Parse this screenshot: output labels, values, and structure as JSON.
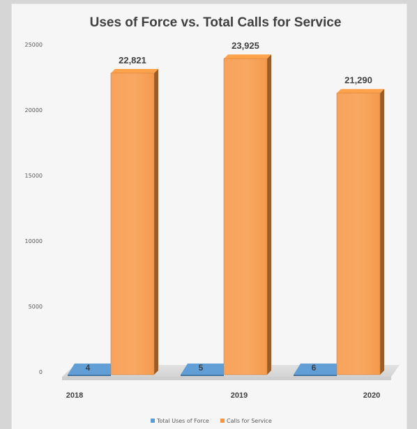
{
  "chart_data": {
    "type": "bar",
    "title": "Uses of Force vs. Total Calls for Service",
    "xlabel": "",
    "ylabel": "",
    "ylim": [
      0,
      25000
    ],
    "yticks": [
      0,
      5000,
      10000,
      15000,
      20000,
      25000
    ],
    "categories": [
      "2018",
      "2019",
      "2020"
    ],
    "series": [
      {
        "name": "Total Uses of Force",
        "values": [
          4,
          5,
          6
        ],
        "labels": [
          "4",
          "5",
          "6"
        ],
        "color": "#5b9bd5"
      },
      {
        "name": "Calls for Service",
        "values": [
          22821,
          23925,
          21290
        ],
        "labels": [
          "22,821",
          "23,925",
          "21,290"
        ],
        "color": "#f79646"
      }
    ],
    "legend": "bottom",
    "grid": false,
    "style": "3d-column"
  }
}
